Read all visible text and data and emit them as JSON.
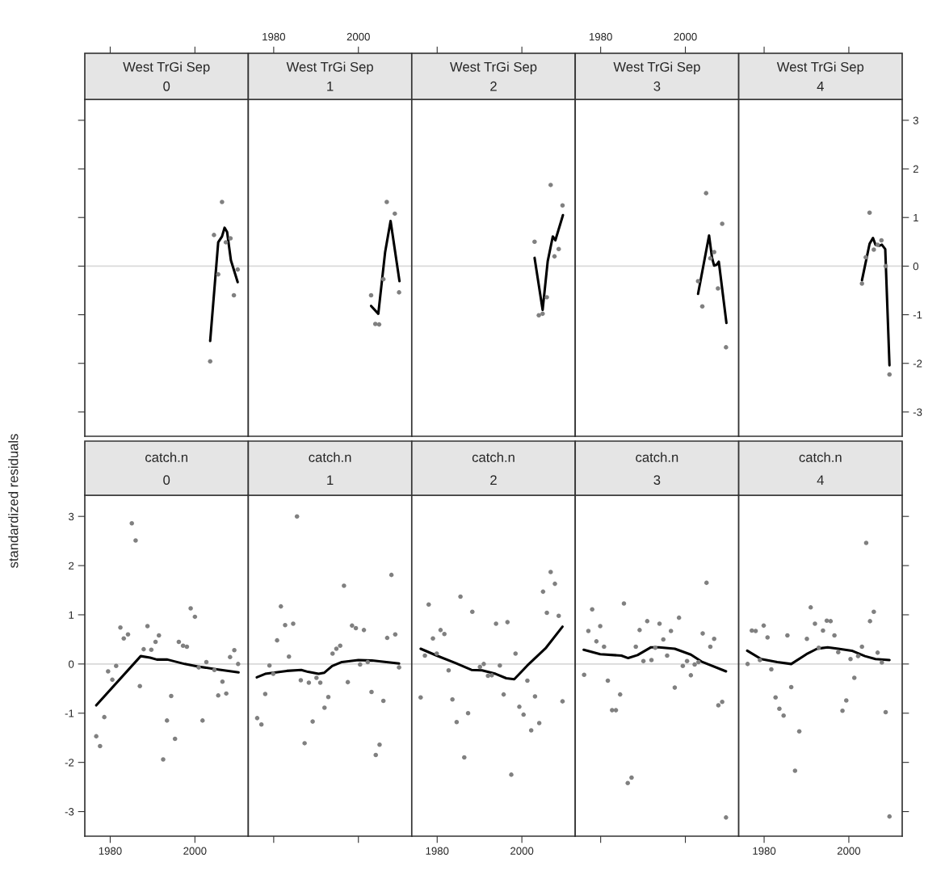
{
  "chart_data": [
    {
      "type": "scatter",
      "title": "West TrGi Sep",
      "subtitle": "0",
      "xlim": [
        1974.0,
        2012.6
      ],
      "xticks": [
        1980,
        2000
      ],
      "ylim": [
        -3.5,
        3.43
      ],
      "yticks": [
        -3,
        -2,
        -1,
        0,
        1,
        2,
        3
      ],
      "tick_labels": false,
      "grid": false,
      "ref_lines": [
        {
          "axis": "y",
          "value": 0,
          "color": "#d9d9d9"
        }
      ],
      "series": [
        {
          "type": "scatter",
          "marker": "circle",
          "color": "#808080",
          "x": [
            2003.6,
            2004.5,
            2005.5,
            2006.4,
            2007.3,
            2008.4,
            2009.2,
            2010.1
          ],
          "values": [
            -1.96,
            0.64,
            -0.17,
            1.32,
            0.49,
            0.57,
            -0.6,
            -0.07
          ]
        },
        {
          "type": "line",
          "marker": "none",
          "line_style": "solid",
          "color": "#000000",
          "x": [
            2003.6,
            2005.5,
            2006.4,
            2007.0,
            2007.6,
            2008.5,
            2010.1
          ],
          "values": [
            -1.54,
            0.49,
            0.61,
            0.79,
            0.7,
            0.12,
            -0.33
          ]
        }
      ]
    },
    {
      "type": "scatter",
      "title": "West TrGi Sep",
      "subtitle": "1",
      "xlim": [
        1974.0,
        2012.6
      ],
      "xticks": [
        1980,
        2000
      ],
      "ylim": [
        -3.5,
        3.43
      ],
      "yticks": [
        -3,
        -2,
        -1,
        0,
        1,
        2,
        3
      ],
      "tick_labels": "x",
      "grid": false,
      "ref_lines": [
        {
          "axis": "y",
          "value": 0,
          "color": "#d9d9d9"
        }
      ],
      "series": [
        {
          "type": "scatter",
          "marker": "circle",
          "color": "#808080",
          "x": [
            2003.0,
            2004.0,
            2004.9,
            2005.9,
            2006.7,
            2008.6,
            2009.6
          ],
          "values": [
            -0.6,
            -1.19,
            -1.2,
            -0.27,
            1.32,
            1.08,
            -0.54
          ]
        },
        {
          "type": "line",
          "marker": "none",
          "line_style": "solid",
          "color": "#000000",
          "x": [
            2003.0,
            2004.7,
            2006.3,
            2007.6,
            2009.7
          ],
          "values": [
            -0.82,
            -0.98,
            0.28,
            0.93,
            -0.31
          ]
        }
      ]
    },
    {
      "type": "scatter",
      "title": "West TrGi Sep",
      "subtitle": "2",
      "xlim": [
        1974.0,
        2012.6
      ],
      "xticks": [
        1980,
        2000
      ],
      "ylim": [
        -3.5,
        3.43
      ],
      "yticks": [
        -3,
        -2,
        -1,
        0,
        1,
        2,
        3
      ],
      "tick_labels": false,
      "grid": false,
      "ref_lines": [
        {
          "axis": "y",
          "value": 0,
          "color": "#d9d9d9"
        }
      ],
      "series": [
        {
          "type": "scatter",
          "marker": "circle",
          "color": "#808080",
          "x": [
            2003.0,
            2004.0,
            2004.9,
            2005.9,
            2006.8,
            2007.7,
            2008.7,
            2009.6
          ],
          "values": [
            0.5,
            -1.01,
            -0.98,
            -0.64,
            1.67,
            0.2,
            0.35,
            1.25
          ]
        },
        {
          "type": "line",
          "marker": "none",
          "line_style": "solid",
          "color": "#000000",
          "x": [
            2003.0,
            2004.9,
            2006.1,
            2007.3,
            2007.9,
            2009.7
          ],
          "values": [
            0.17,
            -0.9,
            0.1,
            0.61,
            0.53,
            1.05
          ]
        }
      ]
    },
    {
      "type": "scatter",
      "title": "West TrGi Sep",
      "subtitle": "3",
      "xlim": [
        1974.0,
        2012.6
      ],
      "xticks": [
        1980,
        2000
      ],
      "ylim": [
        -3.5,
        3.43
      ],
      "yticks": [
        -3,
        -2,
        -1,
        0,
        1,
        2,
        3
      ],
      "tick_labels": "x",
      "grid": false,
      "ref_lines": [
        {
          "axis": "y",
          "value": 0,
          "color": "#d9d9d9"
        }
      ],
      "series": [
        {
          "type": "scatter",
          "marker": "circle",
          "color": "#808080",
          "x": [
            2003.0,
            2004.0,
            2004.9,
            2005.9,
            2006.8,
            2007.7,
            2008.7,
            2009.6
          ],
          "values": [
            -0.31,
            -0.83,
            1.5,
            0.16,
            0.29,
            -0.46,
            0.87,
            -1.67
          ]
        },
        {
          "type": "line",
          "marker": "none",
          "line_style": "solid",
          "color": "#000000",
          "x": [
            2003.0,
            2005.6,
            2006.3,
            2006.8,
            2007.4,
            2007.9,
            2009.7
          ],
          "values": [
            -0.57,
            0.63,
            0.17,
            0.01,
            0.03,
            0.09,
            -1.17
          ]
        }
      ]
    },
    {
      "type": "scatter",
      "title": "West TrGi Sep",
      "subtitle": "4",
      "xlim": [
        1974.0,
        2012.6
      ],
      "xticks": [
        1980,
        2000
      ],
      "ylim": [
        -3.5,
        3.43
      ],
      "yticks": [
        -3,
        -2,
        -1,
        0,
        1,
        2,
        3
      ],
      "tick_labels": "y",
      "grid": false,
      "ref_lines": [
        {
          "axis": "y",
          "value": 0,
          "color": "#d9d9d9"
        }
      ],
      "series": [
        {
          "type": "scatter",
          "marker": "circle",
          "color": "#808080",
          "x": [
            2003.1,
            2004.0,
            2004.9,
            2005.9,
            2006.8,
            2007.7,
            2008.7,
            2009.6
          ],
          "values": [
            -0.36,
            0.18,
            1.1,
            0.34,
            0.44,
            0.53,
            0.0,
            -2.23
          ]
        },
        {
          "type": "line",
          "marker": "none",
          "line_style": "solid",
          "color": "#000000",
          "x": [
            2003.1,
            2004.9,
            2005.7,
            2006.3,
            2007.2,
            2007.8,
            2008.6,
            2009.6
          ],
          "values": [
            -0.29,
            0.46,
            0.58,
            0.44,
            0.42,
            0.44,
            0.35,
            -2.04
          ]
        }
      ]
    },
    {
      "type": "scatter",
      "title": "catch.n",
      "subtitle": "0",
      "ylabel": "standardized residuals",
      "xlim": [
        1974.0,
        2012.6
      ],
      "xticks": [
        1980,
        2000
      ],
      "ylim": [
        -3.5,
        3.43
      ],
      "yticks": [
        -3,
        -2,
        -1,
        0,
        1,
        2,
        3
      ],
      "grid": false,
      "ref_lines": [
        {
          "axis": "y",
          "value": 0,
          "color": "#d9d9d9"
        }
      ],
      "series": [
        {
          "type": "scatter",
          "marker": "circle",
          "color": "#808080",
          "x": [
            1976.7,
            1977.6,
            1978.6,
            1979.5,
            1980.5,
            1981.4,
            1982.4,
            1983.2,
            1984.2,
            1985.1,
            1986.0,
            1987.0,
            1987.9,
            1988.8,
            1989.7,
            1990.7,
            1991.5,
            1992.5,
            1993.4,
            1994.4,
            1995.3,
            1996.2,
            1997.2,
            1998.1,
            1999.0,
            2000.0,
            2000.9,
            2001.8,
            2002.7,
            2004.6,
            2005.5,
            2006.5,
            2007.4,
            2008.3,
            2009.3,
            2010.2
          ],
          "values": [
            -1.47,
            -1.67,
            -1.08,
            -0.15,
            -0.32,
            -0.04,
            0.74,
            0.52,
            0.6,
            2.86,
            2.51,
            -0.45,
            0.3,
            0.77,
            0.29,
            0.45,
            0.58,
            -1.94,
            -1.15,
            -0.65,
            -1.52,
            0.45,
            0.37,
            0.35,
            1.13,
            0.96,
            -0.07,
            -1.15,
            0.04,
            -0.12,
            -0.64,
            -0.36,
            -0.6,
            0.14,
            0.28,
            0.0
          ]
        },
        {
          "type": "line",
          "marker": "none",
          "line_style": "solid",
          "color": "#000000",
          "x": [
            1976.7,
            1987.2,
            1989.4,
            1991.0,
            1993.5,
            1997.6,
            2000.7,
            2004.5,
            2010.3
          ],
          "values": [
            -0.84,
            0.16,
            0.13,
            0.09,
            0.09,
            0.0,
            -0.05,
            -0.1,
            -0.17
          ]
        }
      ]
    },
    {
      "type": "scatter",
      "title": "catch.n",
      "subtitle": "1",
      "xlim": [
        1974.0,
        2012.6
      ],
      "xticks": [
        1980,
        2000
      ],
      "ylim": [
        -3.5,
        3.43
      ],
      "yticks": [
        -3,
        -2,
        -1,
        0,
        1,
        2,
        3
      ],
      "tick_labels": false,
      "grid": false,
      "ref_lines": [
        {
          "axis": "y",
          "value": 0,
          "color": "#d9d9d9"
        }
      ],
      "series": [
        {
          "type": "scatter",
          "marker": "circle",
          "color": "#808080",
          "x": [
            1976.1,
            1977.1,
            1978.0,
            1979.0,
            1979.9,
            1980.8,
            1981.7,
            1982.7,
            1983.6,
            1984.6,
            1985.5,
            1986.4,
            1987.3,
            1988.3,
            1989.2,
            1990.1,
            1991.0,
            1992.0,
            1992.9,
            1993.9,
            1994.8,
            1995.7,
            1996.6,
            1997.5,
            1998.5,
            1999.4,
            2000.4,
            2001.3,
            2002.2,
            2003.1,
            2004.1,
            2005.0,
            2005.9,
            2006.8,
            2007.8,
            2008.7,
            2009.6
          ],
          "values": [
            -1.1,
            -1.23,
            -0.61,
            -0.03,
            -0.2,
            0.48,
            1.17,
            0.79,
            0.15,
            0.82,
            3.0,
            -0.33,
            -1.61,
            -0.38,
            -1.17,
            -0.28,
            -0.38,
            -0.89,
            -0.67,
            0.21,
            0.31,
            0.37,
            1.59,
            -0.37,
            0.78,
            0.73,
            -0.01,
            0.69,
            0.04,
            -0.57,
            -1.85,
            -1.64,
            -0.75,
            0.53,
            1.81,
            0.6,
            -0.07
          ]
        },
        {
          "type": "line",
          "marker": "none",
          "line_style": "solid",
          "color": "#000000",
          "x": [
            1976.0,
            1978.0,
            1983.1,
            1986.5,
            1988.1,
            1990.6,
            1991.9,
            1993.8,
            1996.1,
            2000.0,
            2003.2,
            2009.6
          ],
          "values": [
            -0.27,
            -0.2,
            -0.14,
            -0.12,
            -0.16,
            -0.2,
            -0.18,
            -0.04,
            0.04,
            0.08,
            0.07,
            0.01
          ]
        }
      ]
    },
    {
      "type": "scatter",
      "title": "catch.n",
      "subtitle": "2",
      "xlim": [
        1974.0,
        2012.6
      ],
      "xticks": [
        1980,
        2000
      ],
      "ylim": [
        -3.5,
        3.43
      ],
      "yticks": [
        -3,
        -2,
        -1,
        0,
        1,
        2,
        3
      ],
      "tick_labels": "x",
      "grid": false,
      "ref_lines": [
        {
          "axis": "y",
          "value": 0,
          "color": "#d9d9d9"
        }
      ],
      "series": [
        {
          "type": "scatter",
          "marker": "circle",
          "color": "#808080",
          "x": [
            1976.1,
            1977.1,
            1978.0,
            1979.0,
            1979.9,
            1980.8,
            1981.7,
            1982.7,
            1983.6,
            1984.6,
            1985.5,
            1986.4,
            1987.3,
            1988.3,
            1990.1,
            1991.0,
            1992.0,
            1992.9,
            1993.9,
            1994.8,
            1995.7,
            1996.6,
            1997.5,
            1998.5,
            1999.4,
            2000.4,
            2001.3,
            2002.2,
            2003.1,
            2004.1,
            2005.0,
            2005.9,
            2006.8,
            2007.8,
            2008.7,
            2009.6
          ],
          "values": [
            -0.68,
            0.17,
            1.21,
            0.52,
            0.21,
            0.69,
            0.61,
            -0.13,
            -0.72,
            -1.18,
            1.37,
            -1.9,
            -1.0,
            1.06,
            -0.06,
            0.0,
            -0.24,
            -0.23,
            0.82,
            -0.03,
            -0.62,
            0.85,
            -2.25,
            0.21,
            -0.87,
            -1.03,
            -0.34,
            -1.35,
            -0.66,
            -1.2,
            1.47,
            1.04,
            1.87,
            1.63,
            0.98,
            -0.76
          ]
        },
        {
          "type": "line",
          "marker": "none",
          "line_style": "solid",
          "color": "#000000",
          "x": [
            1976.1,
            1979.9,
            1984.3,
            1988.1,
            1990.6,
            1993.8,
            1996.3,
            1998.2,
            2001.3,
            2005.7,
            2009.6
          ],
          "values": [
            0.31,
            0.17,
            0.02,
            -0.12,
            -0.13,
            -0.2,
            -0.29,
            -0.31,
            -0.03,
            0.33,
            0.76
          ]
        }
      ]
    },
    {
      "type": "scatter",
      "title": "catch.n",
      "subtitle": "3",
      "xlim": [
        1974.0,
        2012.6
      ],
      "xticks": [
        1980,
        2000
      ],
      "ylim": [
        -3.5,
        3.43
      ],
      "yticks": [
        -3,
        -2,
        -1,
        0,
        1,
        2,
        3
      ],
      "tick_labels": false,
      "grid": false,
      "ref_lines": [
        {
          "axis": "y",
          "value": 0,
          "color": "#d9d9d9"
        }
      ],
      "series": [
        {
          "type": "scatter",
          "marker": "circle",
          "color": "#808080",
          "x": [
            1976.1,
            1977.1,
            1978.0,
            1979.0,
            1979.9,
            1980.8,
            1981.7,
            1982.7,
            1983.6,
            1984.6,
            1985.5,
            1986.4,
            1987.3,
            1988.3,
            1989.2,
            1990.1,
            1991.0,
            1992.0,
            1992.9,
            1993.9,
            1994.8,
            1995.7,
            1996.6,
            1997.5,
            1998.5,
            1999.4,
            2000.4,
            2001.3,
            2002.2,
            2003.1,
            2004.1,
            2005.0,
            2005.9,
            2006.8,
            2007.8,
            2008.7,
            2009.6
          ],
          "values": [
            -0.22,
            0.67,
            1.11,
            0.46,
            0.77,
            0.35,
            -0.34,
            -0.94,
            -0.94,
            -0.62,
            1.23,
            -2.42,
            -2.31,
            0.35,
            0.69,
            0.06,
            0.87,
            0.08,
            0.33,
            0.82,
            0.5,
            0.17,
            0.67,
            -0.48,
            0.94,
            -0.04,
            0.06,
            -0.23,
            -0.01,
            0.04,
            0.62,
            1.65,
            0.35,
            0.51,
            -0.84,
            -0.77,
            -3.12
          ]
        },
        {
          "type": "line",
          "marker": "none",
          "line_style": "solid",
          "color": "#000000",
          "x": [
            1976.0,
            1979.9,
            1984.9,
            1986.5,
            1988.7,
            1991.9,
            1993.8,
            1997.5,
            2001.3,
            2003.8,
            2009.6
          ],
          "values": [
            0.29,
            0.2,
            0.17,
            0.12,
            0.18,
            0.34,
            0.34,
            0.31,
            0.19,
            0.05,
            -0.15
          ]
        }
      ]
    },
    {
      "type": "scatter",
      "title": "catch.n",
      "subtitle": "4",
      "xlim": [
        1974.0,
        2012.6
      ],
      "xticks": [
        1980,
        2000
      ],
      "ylim": [
        -3.5,
        3.43
      ],
      "yticks": [
        -3,
        -2,
        -1,
        0,
        1,
        2,
        3
      ],
      "tick_labels": "x",
      "grid": false,
      "ref_lines": [
        {
          "axis": "y",
          "value": 0,
          "color": "#d9d9d9"
        }
      ],
      "series": [
        {
          "type": "scatter",
          "marker": "circle",
          "color": "#808080",
          "x": [
            1976.1,
            1977.1,
            1978.0,
            1979.0,
            1979.9,
            1980.8,
            1981.7,
            1982.7,
            1983.6,
            1984.6,
            1985.5,
            1986.4,
            1987.3,
            1988.3,
            1990.1,
            1991.0,
            1992.0,
            1992.9,
            1993.9,
            1994.8,
            1995.7,
            1996.6,
            1997.5,
            1998.5,
            1999.4,
            2000.4,
            2001.3,
            2002.2,
            2003.1,
            2004.1,
            2005.0,
            2005.9,
            2006.8,
            2007.8,
            2008.7,
            2009.6
          ],
          "values": [
            0.0,
            0.68,
            0.67,
            0.08,
            0.78,
            0.54,
            -0.11,
            -0.68,
            -0.91,
            -1.05,
            0.58,
            -0.47,
            -2.17,
            -1.37,
            0.51,
            1.15,
            0.82,
            0.33,
            0.68,
            0.88,
            0.87,
            0.58,
            0.24,
            -0.95,
            -0.74,
            0.1,
            -0.28,
            0.16,
            0.35,
            2.46,
            0.87,
            1.06,
            0.23,
            0.03,
            -0.98,
            -3.1
          ]
        },
        {
          "type": "line",
          "marker": "none",
          "line_style": "solid",
          "color": "#000000",
          "x": [
            1976.0,
            1979.3,
            1983.1,
            1986.4,
            1990.0,
            1992.5,
            1995.0,
            1997.5,
            2000.7,
            2003.8,
            2006.3,
            2009.6
          ],
          "values": [
            0.27,
            0.1,
            0.04,
            0.0,
            0.2,
            0.31,
            0.34,
            0.31,
            0.27,
            0.16,
            0.1,
            0.08
          ]
        }
      ]
    }
  ]
}
